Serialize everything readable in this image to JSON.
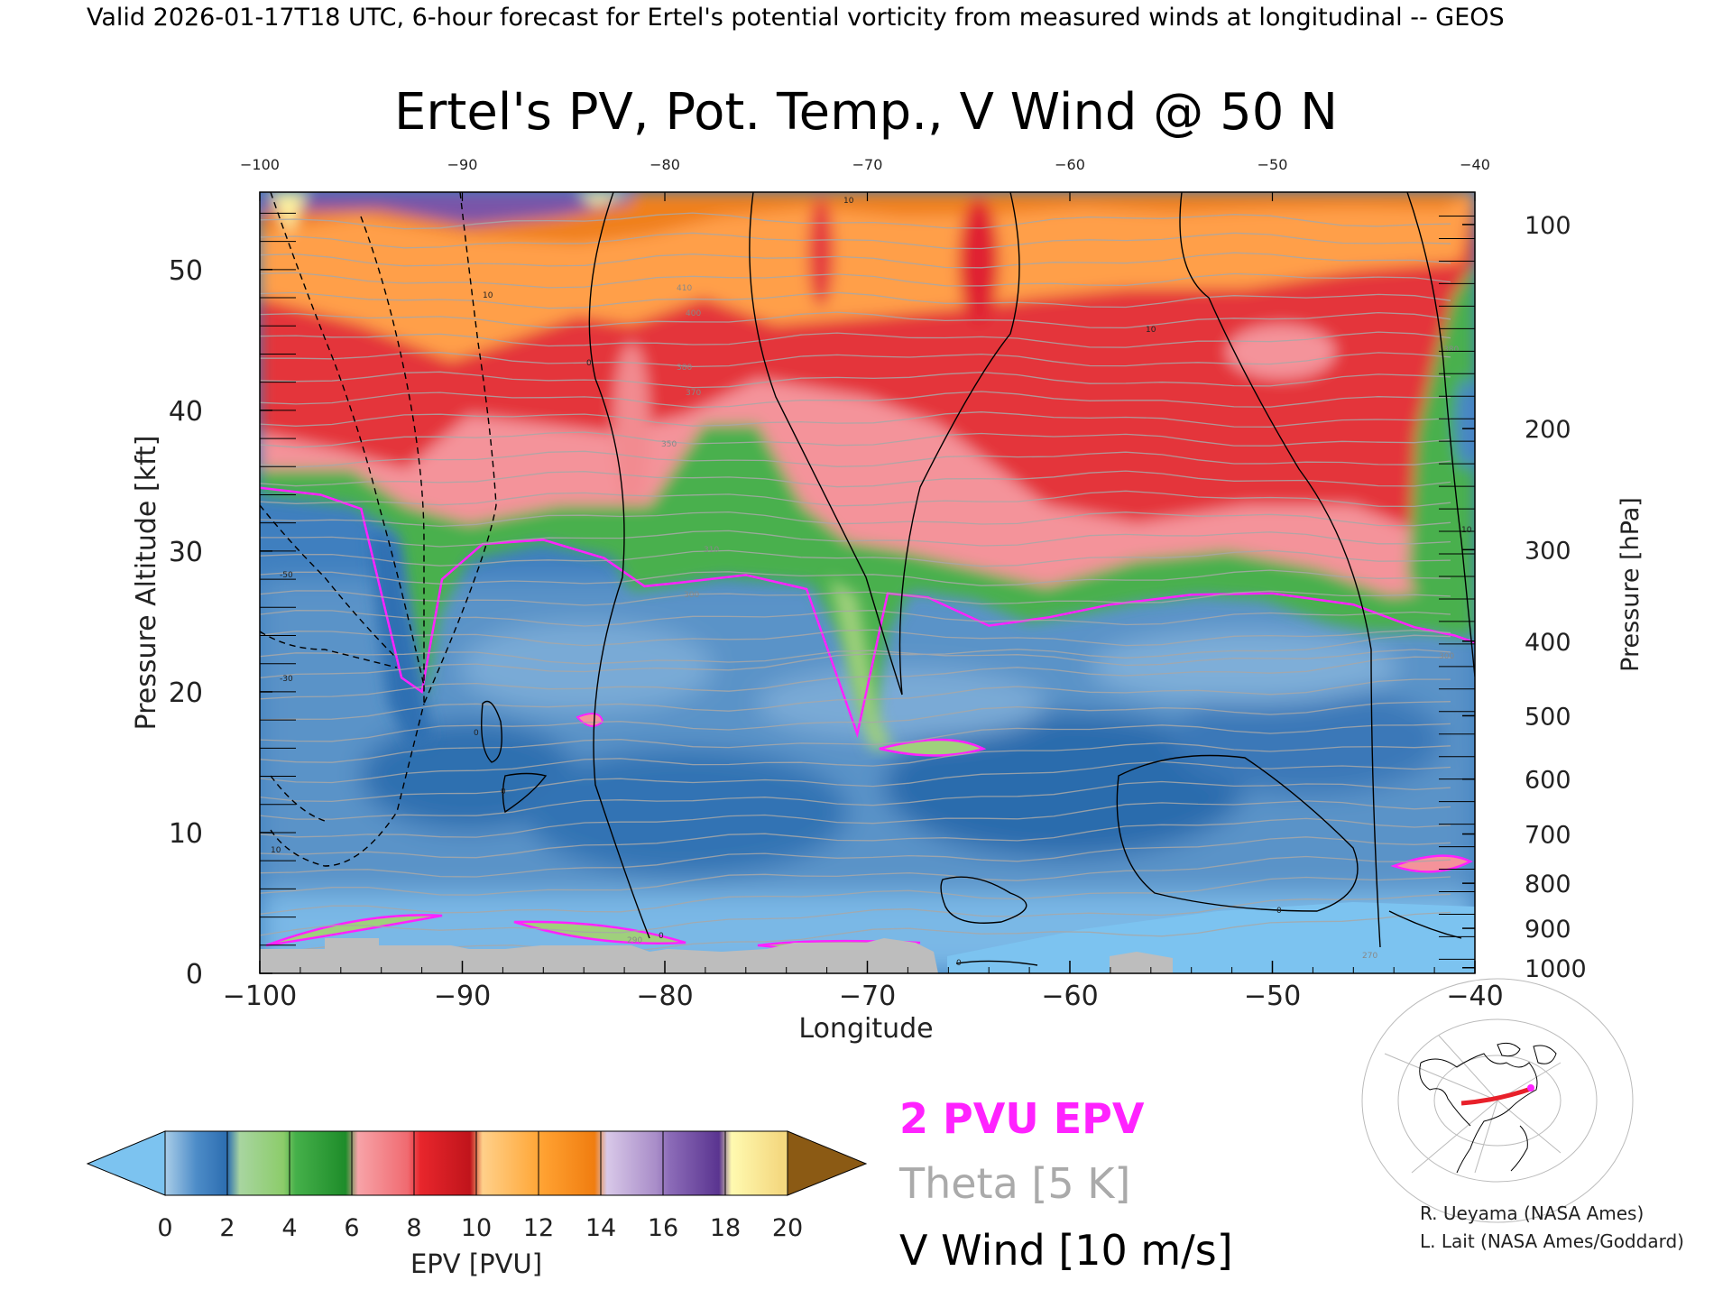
{
  "header": {
    "valid_line": "Valid 2026-01-17T18 UTC, 6-hour forecast for Ertel's potential vorticity from measured winds at longitudinal -- GEOS"
  },
  "chart_data": {
    "type": "heatmap",
    "title": "Ertel's PV, Pot. Temp., V Wind @ 50 N",
    "xlabel": "Longitude",
    "ylabel_left": "Pressure Altitude [kft]",
    "ylabel_right": "Pressure [hPa]",
    "xlim": [
      -100,
      -40
    ],
    "ylim": [
      0,
      55.5
    ],
    "x_ticks_bottom": [
      "−100",
      "−90",
      "−80",
      "−70",
      "−60",
      "−50",
      "−40"
    ],
    "x_ticks_top": [
      "−100",
      "−90",
      "−80",
      "−70",
      "−60",
      "−50",
      "−40"
    ],
    "x_tick_values": [
      -100,
      -90,
      -80,
      -70,
      -60,
      -50,
      -40
    ],
    "y_ticks_left": [
      "0",
      "10",
      "20",
      "30",
      "40",
      "50"
    ],
    "y_tick_values_left": [
      0,
      10,
      20,
      30,
      40,
      50
    ],
    "pressure_ticks": [
      {
        "label": "100",
        "kft": 53.2
      },
      {
        "label": "200",
        "kft": 38.7
      },
      {
        "label": "300",
        "kft": 30.1
      },
      {
        "label": "400",
        "kft": 23.6
      },
      {
        "label": "500",
        "kft": 18.3
      },
      {
        "label": "600",
        "kft": 13.8
      },
      {
        "label": "700",
        "kft": 9.9
      },
      {
        "label": "800",
        "kft": 6.4
      },
      {
        "label": "900",
        "kft": 3.2
      },
      {
        "label": "1000",
        "kft": 0.4
      }
    ],
    "colorbar": {
      "label": "EPV [PVU]",
      "ticks": [
        "0",
        "2",
        "4",
        "6",
        "8",
        "10",
        "12",
        "14",
        "16",
        "18",
        "20"
      ],
      "range": [
        0,
        20
      ],
      "extend": "both"
    },
    "legend": {
      "epv_line": "2 PVU EPV",
      "theta": "Theta [5 K]",
      "vwind": "V Wind [10 m/s]",
      "epv_color": "#ff22ff",
      "theta_color": "#aaaaaa",
      "vwind_color": "#000000"
    },
    "tropopause_2pvu_kft": {
      "x": [
        -100,
        -97,
        -95,
        -93,
        -92,
        -91,
        -89,
        -86,
        -83,
        -81,
        -79,
        -76,
        -73,
        -70.5,
        -69,
        -67,
        -64,
        -61,
        -58,
        -54,
        -50,
        -46,
        -43,
        -41,
        -40
      ],
      "y": [
        34.5,
        34,
        33,
        21,
        20,
        28,
        30.5,
        30.8,
        29.5,
        27.5,
        27.8,
        28.3,
        27.3,
        17,
        27,
        26.7,
        24.7,
        25.3,
        26.2,
        26.9,
        27,
        26.2,
        24.6,
        24.0,
        23.5
      ]
    },
    "v_wind_contour_labels": [
      "10",
      "0",
      "-10",
      "-30",
      "-50"
    ],
    "theta_contour_labels_K": [
      "270",
      "290",
      "300",
      "310",
      "350",
      "370",
      "380",
      "400",
      "410"
    ]
  },
  "inset_map": {
    "name": "locator-map"
  },
  "credits": {
    "line1": "R. Ueyama (NASA Ames)",
    "line2": "L. Lait (NASA Ames/Goddard)"
  },
  "colors": {
    "ground": "#bdbdbd",
    "tropo_low": "#3f80bf",
    "strat_mid": "#e02a2f",
    "strat_high": "#ff8e1e"
  }
}
